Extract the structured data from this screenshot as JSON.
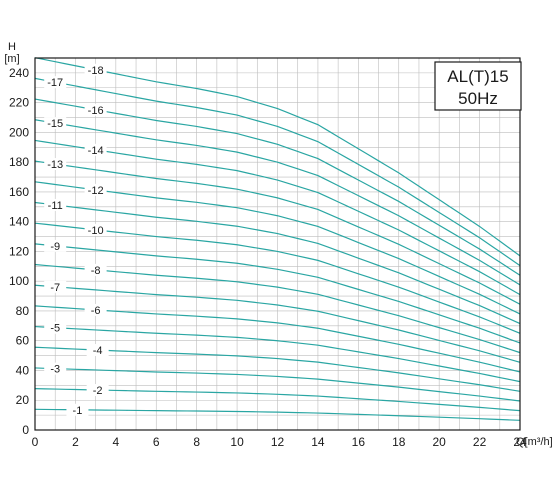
{
  "chart_data": {
    "type": "line",
    "title": "",
    "model_label": "AL(T)15",
    "frequency_label": "50Hz",
    "ylabel_top": "H",
    "ylabel_unit": "[m]",
    "xlabel": "Q[m³/h]",
    "xlim": [
      0,
      24
    ],
    "ylim": [
      0,
      250
    ],
    "x_ticks": [
      0,
      2,
      4,
      6,
      8,
      10,
      12,
      14,
      16,
      18,
      20,
      22,
      24
    ],
    "y_ticks": [
      0,
      20,
      40,
      60,
      80,
      100,
      120,
      140,
      160,
      180,
      200,
      220,
      240
    ],
    "grid": true,
    "line_color": "#2aa6a3",
    "curve_shape_per_stage": {
      "x": [
        0,
        2,
        4,
        6,
        8,
        10,
        12,
        14,
        16,
        18,
        20,
        22,
        24
      ],
      "head_m": [
        13.9,
        13.6,
        13.3,
        13.0,
        12.75,
        12.45,
        12.0,
        11.4,
        10.5,
        9.6,
        8.6,
        7.6,
        6.5
      ]
    },
    "series": [
      {
        "name": "-1",
        "label_x": 2.1
      },
      {
        "name": "-2",
        "label_x": 3.1
      },
      {
        "name": "-3",
        "label_x": 1.0
      },
      {
        "name": "-4",
        "label_x": 3.1
      },
      {
        "name": "-5",
        "label_x": 1.0
      },
      {
        "name": "-6",
        "label_x": 3.0
      },
      {
        "name": "-7",
        "label_x": 1.0
      },
      {
        "name": "-8",
        "label_x": 3.0
      },
      {
        "name": "-9",
        "label_x": 1.0
      },
      {
        "name": "-10",
        "label_x": 3.0
      },
      {
        "name": "-11",
        "label_x": 1.0
      },
      {
        "name": "-12",
        "label_x": 3.0
      },
      {
        "name": "-13",
        "label_x": 1.0
      },
      {
        "name": "-14",
        "label_x": 3.0
      },
      {
        "name": "-15",
        "label_x": 1.0
      },
      {
        "name": "-16",
        "label_x": 3.0
      },
      {
        "name": "-17",
        "label_x": 1.0
      },
      {
        "name": "-18",
        "label_x": 3.0
      }
    ]
  }
}
